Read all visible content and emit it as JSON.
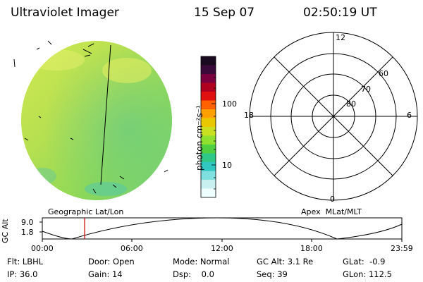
{
  "header": {
    "instrument": "Ultraviolet Imager",
    "date": "15 Sep 07",
    "time": "02:50:19 UT"
  },
  "colorbar": {
    "unit_label": "photon cm⁻²s⁻¹",
    "ticks": [
      "100",
      "10"
    ],
    "colors": [
      "#1a0a20",
      "#3a0a3a",
      "#7a0040",
      "#b00020",
      "#e01010",
      "#ff6000",
      "#ffa000",
      "#e8c800",
      "#c8e020",
      "#90e030",
      "#50d040",
      "#30c888",
      "#30c8c0",
      "#80e0e0",
      "#c8f0f0",
      "#f0ffff"
    ]
  },
  "polar_plot": {
    "labels": {
      "top": "12",
      "left": "18",
      "right": "6",
      "bottom": "0",
      "lat60": "60",
      "lat70": "70",
      "lat80": "80"
    }
  },
  "panel_labels": {
    "left": "Geographic Lat/Lon",
    "right": "Apex  MLat/MLT"
  },
  "altitude_plot": {
    "y_axis_label": "GC Alt",
    "y_ticks": [
      "9.0",
      "1.8"
    ],
    "x_ticks": [
      "00:00",
      "06:00",
      "12:00",
      "18:00",
      "23:59"
    ],
    "marker_color": "#d00000",
    "marker_time_hours": 2.84
  },
  "metadata": {
    "row1": [
      {
        "label": "Flt:",
        "value": "LBHL"
      },
      {
        "label": "Door:",
        "value": "Open"
      },
      {
        "label": "Mode:",
        "value": "Normal"
      },
      {
        "label": "GC Alt:",
        "value": "3.1 Re"
      },
      {
        "label": "GLat:",
        "value": "-0.9"
      }
    ],
    "row2": [
      {
        "label": "IP:",
        "value": "36.0"
      },
      {
        "label": "Gain:",
        "value": "14"
      },
      {
        "label": "Dsp:",
        "value": "0.0"
      },
      {
        "label": "Seq:",
        "value": "39"
      },
      {
        "label": "GLon:",
        "value": "112.5"
      }
    ]
  }
}
